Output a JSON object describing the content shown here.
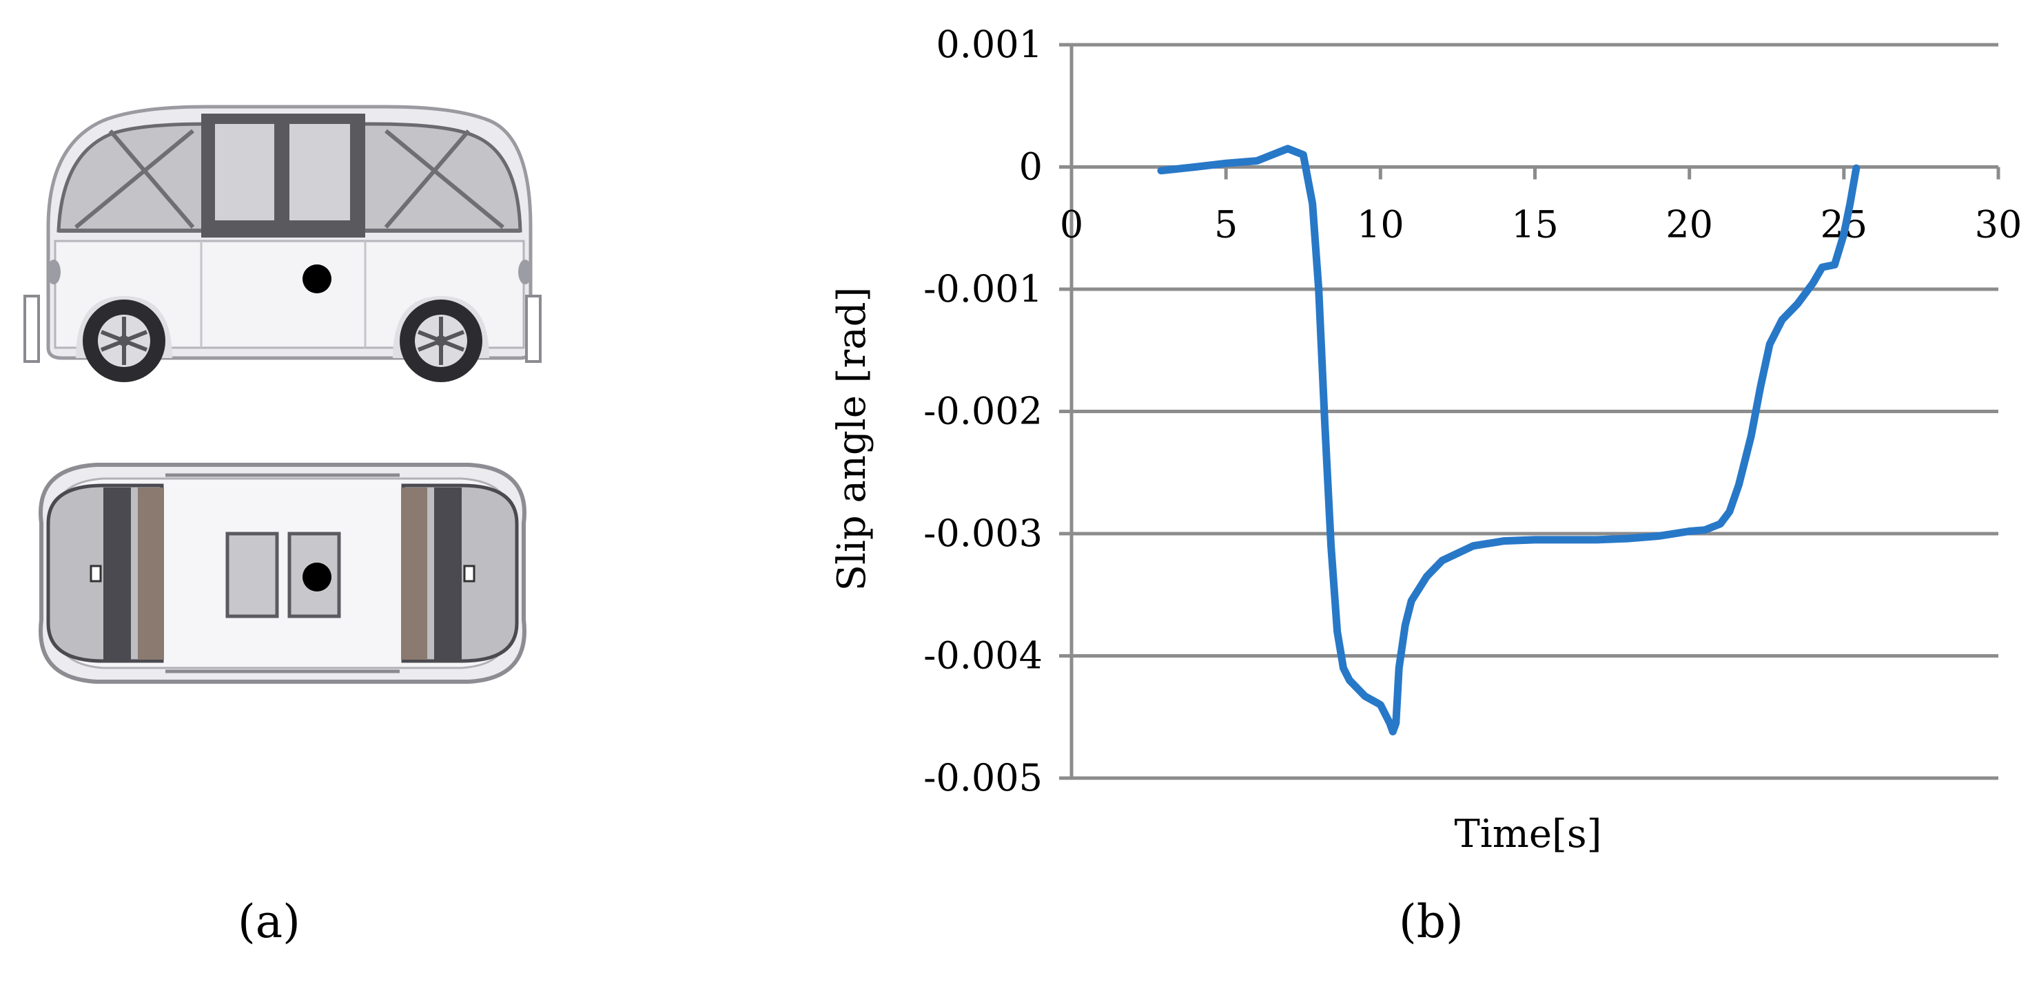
{
  "panels": {
    "a_label": "(a)",
    "b_label": "(b)"
  },
  "figure_a": {
    "views": [
      "side-view",
      "top-view"
    ],
    "body_color": "#e9e9ee",
    "glass_color": "#bcbcc0",
    "frame_color": "#555559",
    "marker_color": "#000000"
  },
  "chart_data": {
    "type": "line",
    "title": "",
    "xlabel": "Time[s]",
    "ylabel": "Slip angle [rad]",
    "xlim": [
      0,
      30
    ],
    "ylim": [
      -0.005,
      0.001
    ],
    "xticks": [
      0,
      5,
      10,
      15,
      20,
      25,
      30
    ],
    "xtick_labels": [
      "0",
      "5",
      "10",
      "15",
      "20",
      "25",
      "30"
    ],
    "yticks": [
      0.001,
      0,
      -0.001,
      -0.002,
      -0.003,
      -0.004,
      -0.005
    ],
    "ytick_labels": [
      "0.001",
      "0",
      "-0.001",
      "-0.002",
      "-0.003",
      "-0.004",
      "-0.005"
    ],
    "x_axis_position": "y=0",
    "grid": "horizontal",
    "grid_color": "#8c8c8c",
    "series_color": "#2878c8",
    "series": [
      {
        "name": "",
        "x": [
          2.9,
          4.0,
          5.0,
          6.0,
          6.5,
          7.0,
          7.5,
          7.8,
          8.0,
          8.2,
          8.4,
          8.6,
          8.8,
          9.0,
          9.5,
          10.0,
          10.3,
          10.4,
          10.5,
          10.6,
          10.8,
          11.0,
          11.5,
          12.0,
          13.0,
          14.0,
          15.0,
          16.0,
          17.0,
          18.0,
          19.0,
          20.0,
          20.5,
          21.0,
          21.3,
          21.6,
          22.0,
          22.3,
          22.6,
          23.0,
          23.5,
          24.0,
          24.3,
          24.7,
          25.0,
          25.2,
          25.4
        ],
        "y": [
          -3e-05,
          0.0,
          3e-05,
          5e-05,
          0.0001,
          0.00015,
          0.0001,
          -0.0003,
          -0.001,
          -0.0021,
          -0.0031,
          -0.0038,
          -0.0041,
          -0.0042,
          -0.00433,
          -0.0044,
          -0.00455,
          -0.00462,
          -0.00455,
          -0.0041,
          -0.00375,
          -0.00355,
          -0.00335,
          -0.00322,
          -0.0031,
          -0.00306,
          -0.00305,
          -0.00305,
          -0.00305,
          -0.00304,
          -0.00302,
          -0.00298,
          -0.00297,
          -0.00292,
          -0.00282,
          -0.0026,
          -0.0022,
          -0.0018,
          -0.00145,
          -0.00125,
          -0.00112,
          -0.00095,
          -0.00082,
          -0.0008,
          -0.00055,
          -0.0003,
          -1e-05
        ]
      }
    ]
  }
}
